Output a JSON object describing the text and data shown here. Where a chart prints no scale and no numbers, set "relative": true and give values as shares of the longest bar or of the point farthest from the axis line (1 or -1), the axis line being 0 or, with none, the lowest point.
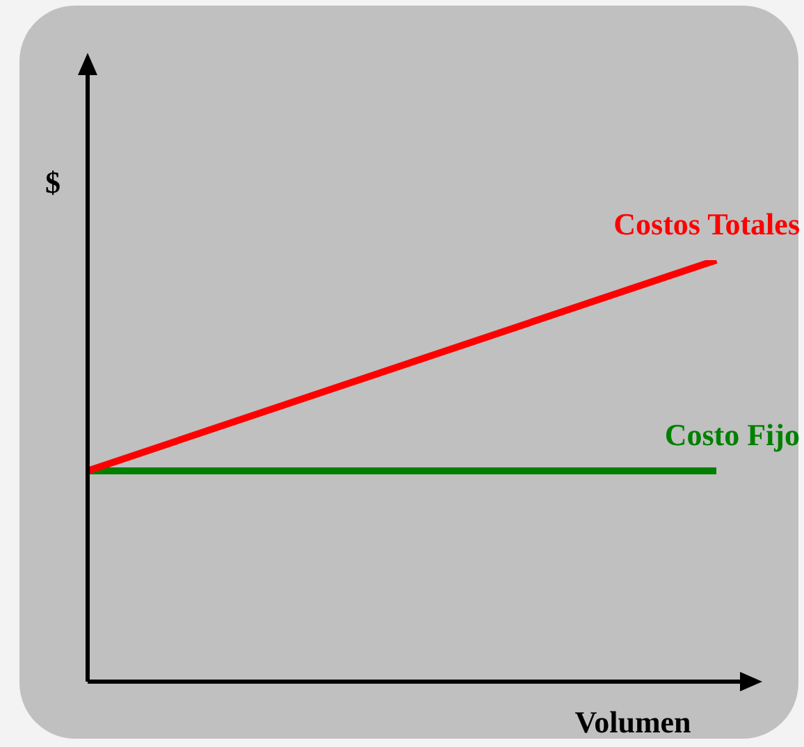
{
  "chart_data": {
    "type": "line",
    "relative": true,
    "xlabel": "Volumen",
    "ylabel": "$",
    "categories": [
      null,
      null
    ],
    "legend": false,
    "grid": false,
    "marker": "none",
    "line_style": "solid",
    "series": [
      {
        "name": "Costos Totales",
        "color": "#ff0000",
        "values": [
          0.5,
          1
        ]
      },
      {
        "name": "Costo Fijo",
        "color": "#008000",
        "values": [
          0.5,
          0.5
        ]
      }
    ]
  }
}
